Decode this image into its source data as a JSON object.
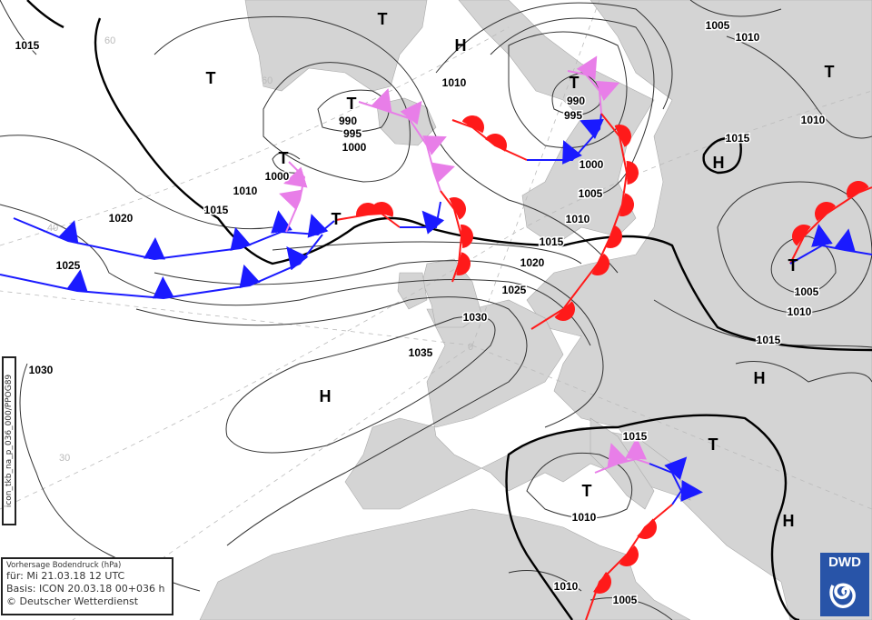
{
  "legend": {
    "title": "Vorhersage Bodendruck (hPa)",
    "valid": "für:  Mi 21.03.18  12 UTC",
    "basis": "Basis: ICON  20.03.18 00+036 h",
    "copyright": "© Deutscher Wetterdienst"
  },
  "product_code": "icon_tkb_na_p_036_000/PPOG89",
  "logo": {
    "text": "DWD",
    "color": "#2854a8"
  },
  "grid_labels": [
    "60",
    "60",
    "40",
    "30",
    "0"
  ],
  "pressure_centers": [
    "T",
    "H",
    "T",
    "T",
    "T",
    "T",
    "T",
    "T",
    "H",
    "T",
    "H",
    "H",
    "T",
    "T",
    "H"
  ],
  "isobar_labels": [
    "1015",
    "1020",
    "1025",
    "1030",
    "1035",
    "1030",
    "1025",
    "1020",
    "1015",
    "1010",
    "1005",
    "1000",
    "995",
    "990",
    "1010",
    "1005",
    "1010",
    "1010",
    "1015",
    "1005",
    "1010",
    "1015",
    "1015",
    "1010",
    "1010",
    "1005",
    "1010",
    "1015",
    "1000",
    "990",
    "995",
    "1000"
  ],
  "colors": {
    "cold_front": "#1a1aff",
    "warm_front": "#ff1a1a",
    "occlusion": "#e87ee8",
    "land": "#d4d4d4"
  }
}
